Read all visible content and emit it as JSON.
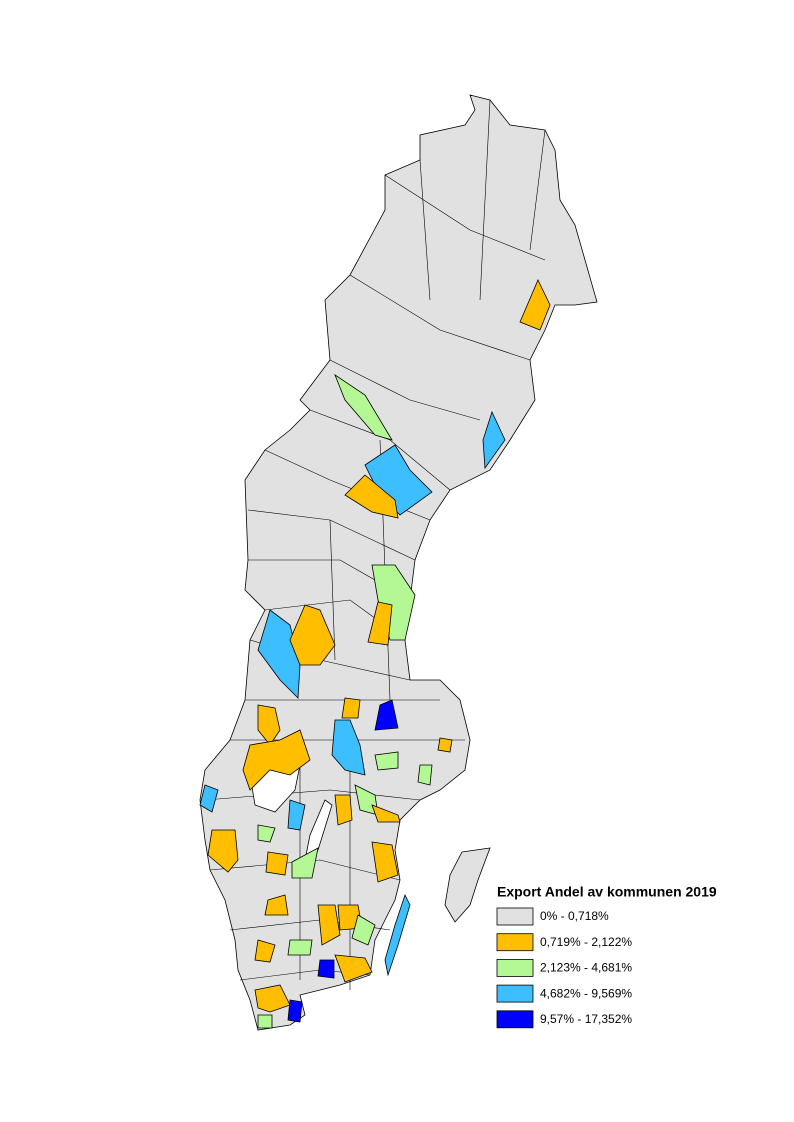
{
  "legend": {
    "title": "Export Andel av kommunen 2019",
    "classes": [
      {
        "label": "0% - 0,718%",
        "color": "#e1e1e1"
      },
      {
        "label": "0,719% - 2,122%",
        "color": "#ffbe00"
      },
      {
        "label": "2,123% - 4,681%",
        "color": "#b4f896"
      },
      {
        "label": "4,682% - 9,569%",
        "color": "#3cbeff"
      },
      {
        "label": "9,57% - 17,352%",
        "color": "#0000ff"
      }
    ]
  }
}
